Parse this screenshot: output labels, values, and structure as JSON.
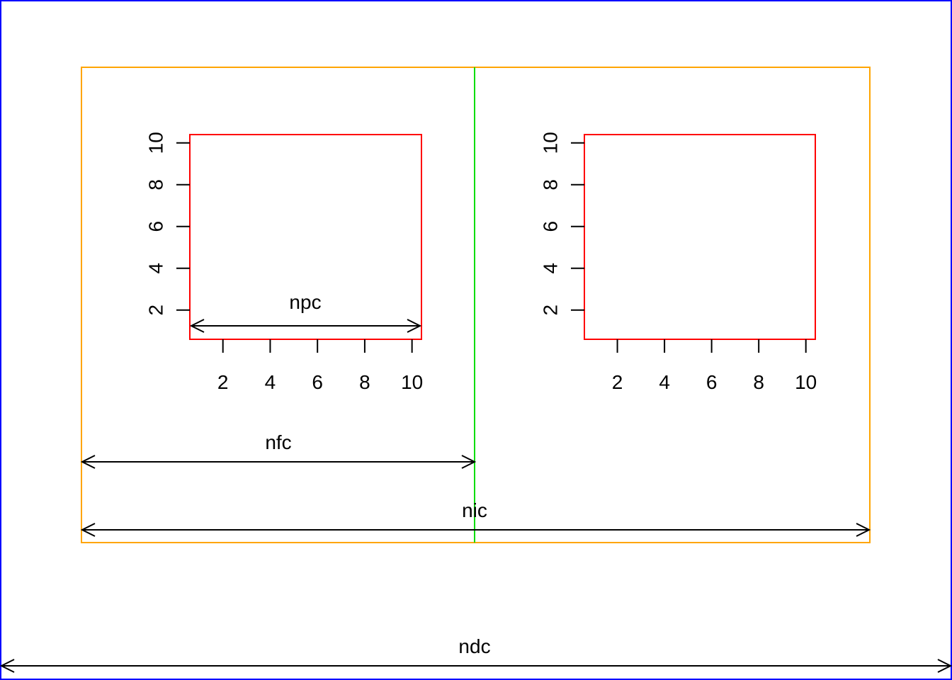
{
  "colors": {
    "device": "#0000ff",
    "inner": "#ffa500",
    "divider": "#00dd00",
    "plot": "#ff0000",
    "arrow": "#000000"
  },
  "panels": [
    {
      "x_ticks": [
        "2",
        "4",
        "6",
        "8",
        "10"
      ],
      "y_ticks": [
        "2",
        "4",
        "6",
        "8",
        "10"
      ],
      "xlim": [
        0.6,
        10.4
      ],
      "ylim": [
        0.6,
        10.4
      ]
    },
    {
      "x_ticks": [
        "2",
        "4",
        "6",
        "8",
        "10"
      ],
      "y_ticks": [
        "2",
        "4",
        "6",
        "8",
        "10"
      ],
      "xlim": [
        0.6,
        10.4
      ],
      "ylim": [
        0.6,
        10.4
      ]
    }
  ],
  "arrows": {
    "npc": "npc",
    "nfc": "nfc",
    "nic": "nic",
    "ndc": "ndc"
  }
}
